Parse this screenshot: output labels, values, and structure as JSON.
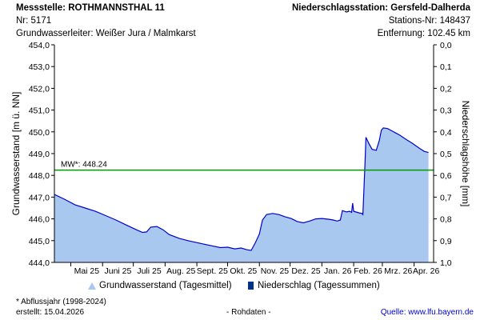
{
  "header": {
    "station_title": "Messstelle: ROTHMANNSTHAL 11",
    "station_nr": "Nr: 5171",
    "aquifer": "Grundwasserleiter:   Weißer Jura / Malmkarst",
    "precip_title": "Niederschlagsstation: Gersfeld-Dalherda",
    "precip_nr": "Stations-Nr: 148437",
    "distance": "Entfernung: 102.45 km"
  },
  "colors": {
    "area_fill": "#a8c8f0",
    "area_line": "#0000cc",
    "mean_line": "#009900",
    "precip_bar": "#003388"
  },
  "chart_data": {
    "type": "area",
    "ylabel_left": "Grundwasserstand [m ü. NN]",
    "ylabel_right": "Niederschlagshöhe [mm]",
    "ylim_left": [
      444.0,
      454.0
    ],
    "yticks_left": [
      "444,0",
      "445,0",
      "446,0",
      "447,0",
      "448,0",
      "449,0",
      "450,0",
      "451,0",
      "452,0",
      "453,0",
      "454,0"
    ],
    "ylim_right": [
      0.0,
      1.0
    ],
    "yticks_right": [
      "0,0",
      "0,1",
      "0,2",
      "0,3",
      "0,4",
      "0,5",
      "0,6",
      "0,7",
      "0,8",
      "0,9",
      "1,0"
    ],
    "right_axis_inverted": true,
    "xlim": [
      "2025-04-15",
      "2026-04-20"
    ],
    "xticks": [
      {
        "label": "Mai 25",
        "date": "2025-05-01"
      },
      {
        "label": "Juni 25",
        "date": "2025-06-01"
      },
      {
        "label": "Juli 25",
        "date": "2025-07-01"
      },
      {
        "label": "Aug. 25",
        "date": "2025-08-01"
      },
      {
        "label": "Sept. 25",
        "date": "2025-09-01"
      },
      {
        "label": "Okt. 25",
        "date": "2025-10-01"
      },
      {
        "label": "Nov. 25",
        "date": "2025-11-01"
      },
      {
        "label": "Dez. 25",
        "date": "2025-12-01"
      },
      {
        "label": "Jan. 26",
        "date": "2026-01-01"
      },
      {
        "label": "Feb. 26",
        "date": "2026-02-01"
      },
      {
        "label": "Mrz. 26",
        "date": "2026-03-01"
      },
      {
        "label": "Apr. 26",
        "date": "2026-04-01"
      }
    ],
    "mean_line": {
      "label": "MW*: 448.24",
      "value": 448.24
    },
    "series": [
      {
        "name": "Grundwasserstand (Tagesmittel)",
        "points": [
          [
            "2025-04-15",
            447.12
          ],
          [
            "2025-04-25",
            446.9
          ],
          [
            "2025-05-05",
            446.65
          ],
          [
            "2025-05-15",
            446.5
          ],
          [
            "2025-05-25",
            446.35
          ],
          [
            "2025-06-04",
            446.15
          ],
          [
            "2025-06-14",
            445.95
          ],
          [
            "2025-06-24",
            445.72
          ],
          [
            "2025-07-04",
            445.5
          ],
          [
            "2025-07-10",
            445.38
          ],
          [
            "2025-07-14",
            445.4
          ],
          [
            "2025-07-18",
            445.62
          ],
          [
            "2025-07-24",
            445.65
          ],
          [
            "2025-07-30",
            445.5
          ],
          [
            "2025-08-05",
            445.28
          ],
          [
            "2025-08-15",
            445.1
          ],
          [
            "2025-08-25",
            444.98
          ],
          [
            "2025-09-04",
            444.88
          ],
          [
            "2025-09-14",
            444.78
          ],
          [
            "2025-09-24",
            444.68
          ],
          [
            "2025-10-01",
            444.7
          ],
          [
            "2025-10-08",
            444.62
          ],
          [
            "2025-10-14",
            444.66
          ],
          [
            "2025-10-20",
            444.58
          ],
          [
            "2025-10-24",
            444.55
          ],
          [
            "2025-10-28",
            444.9
          ],
          [
            "2025-11-01",
            445.3
          ],
          [
            "2025-11-04",
            445.95
          ],
          [
            "2025-11-08",
            446.2
          ],
          [
            "2025-11-14",
            446.25
          ],
          [
            "2025-11-20",
            446.2
          ],
          [
            "2025-11-26",
            446.1
          ],
          [
            "2025-12-02",
            446.02
          ],
          [
            "2025-12-08",
            445.88
          ],
          [
            "2025-12-14",
            445.82
          ],
          [
            "2025-12-20",
            445.9
          ],
          [
            "2025-12-26",
            446.0
          ],
          [
            "2026-01-01",
            446.02
          ],
          [
            "2026-01-08",
            445.98
          ],
          [
            "2026-01-12",
            445.95
          ],
          [
            "2026-01-16",
            445.9
          ],
          [
            "2026-01-19",
            445.95
          ],
          [
            "2026-01-21",
            446.38
          ],
          [
            "2026-01-25",
            446.32
          ],
          [
            "2026-01-28",
            446.35
          ],
          [
            "2026-01-30",
            446.3
          ],
          [
            "2026-01-31",
            446.72
          ],
          [
            "2026-02-01",
            446.35
          ],
          [
            "2026-02-06",
            446.28
          ],
          [
            "2026-02-09",
            446.25
          ],
          [
            "2026-02-10",
            446.2
          ],
          [
            "2026-02-12",
            448.5
          ],
          [
            "2026-02-13",
            449.75
          ],
          [
            "2026-02-16",
            449.45
          ],
          [
            "2026-02-19",
            449.2
          ],
          [
            "2026-02-23",
            449.15
          ],
          [
            "2026-02-26",
            449.6
          ],
          [
            "2026-02-28",
            450.08
          ],
          [
            "2026-03-02",
            450.18
          ],
          [
            "2026-03-06",
            450.15
          ],
          [
            "2026-03-10",
            450.05
          ],
          [
            "2026-03-14",
            449.95
          ],
          [
            "2026-03-18",
            449.85
          ],
          [
            "2026-03-22",
            449.72
          ],
          [
            "2026-03-26",
            449.6
          ],
          [
            "2026-03-30",
            449.48
          ],
          [
            "2026-04-03",
            449.35
          ],
          [
            "2026-04-07",
            449.22
          ],
          [
            "2026-04-11",
            449.1
          ],
          [
            "2026-04-15",
            449.05
          ]
        ]
      },
      {
        "name": "Niederschlag (Tagessummen)",
        "points": []
      }
    ]
  },
  "legend": {
    "gw_label": "Grundwasserstand (Tagesmittel)",
    "precip_label": "Niederschlag (Tagessummen)"
  },
  "footer": {
    "note": "* Abflussjahr (1998-2024)",
    "created": "erstellt:  15.04.2026",
    "raw": "- Rohdaten -",
    "source_label": "Quelle:",
    "source_url": "www.lfu.bayern.de"
  }
}
